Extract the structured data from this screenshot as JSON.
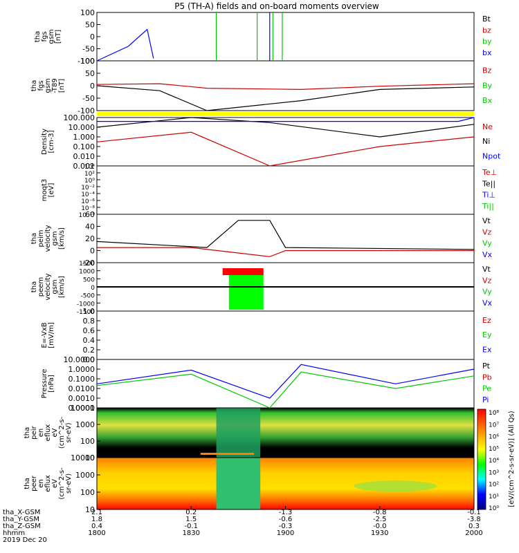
{
  "title": "P5 (TH-A) fields and on-board moments overview",
  "colors": {
    "black": "#000000",
    "red": "#cc0000",
    "green": "#00c800",
    "blue": "#0000ff",
    "yellow": "#ffff00"
  },
  "panels": [
    {
      "id": "fgs_gsm",
      "ylabel": [
        "tha",
        "fgs",
        "gsm",
        "[nT]"
      ],
      "ticks": [
        "100",
        "50",
        "0",
        "-50",
        "-100"
      ],
      "legend": [
        {
          "text": "Bt",
          "color": "black"
        },
        {
          "text": "bz",
          "color": "red"
        },
        {
          "text": "by",
          "color": "green"
        },
        {
          "text": "bx",
          "color": "blue"
        }
      ]
    },
    {
      "id": "fgs_dsl",
      "ylabel": [
        "tha",
        "fgs",
        "gsm",
        "-T89",
        "[nT]"
      ],
      "ticks": [
        "100",
        "50",
        "0",
        "-50",
        "-100"
      ],
      "legend": [
        {
          "text": "Bz",
          "color": "red"
        },
        {
          "text": "By",
          "color": "green"
        },
        {
          "text": "Bx",
          "color": "green"
        }
      ]
    },
    {
      "id": "density",
      "ylabel": [
        "Density",
        "[cm-3]"
      ],
      "ticks": [
        "100.000",
        "10.000",
        "1.000",
        "0.100",
        "0.010",
        "0.001"
      ],
      "legend": [
        {
          "text": "Ne",
          "color": "red"
        },
        {
          "text": "Ni",
          "color": "black"
        },
        {
          "text": "Npot",
          "color": "blue"
        }
      ]
    },
    {
      "id": "temp",
      "ylabel": [
        "moqt3",
        "[eV]"
      ],
      "ticks": [
        "10⁴",
        "10²",
        "10⁰",
        "10⁻²",
        "10⁻⁴",
        "10⁻⁶",
        "10⁻⁸",
        "10⁻¹⁰"
      ],
      "legend": [
        {
          "text": "Te⊥",
          "color": "red"
        },
        {
          "text": "Te||",
          "color": "black"
        },
        {
          "text": "Ti⊥",
          "color": "blue"
        },
        {
          "text": "Ti||",
          "color": "green"
        }
      ]
    },
    {
      "id": "peim_vel",
      "ylabel": [
        "tha",
        "peim",
        "velocity",
        "gsm",
        "[km/s]"
      ],
      "ticks": [
        "60",
        "40",
        "20",
        "0",
        "-20"
      ],
      "legend": [
        {
          "text": "Vt",
          "color": "black"
        },
        {
          "text": "Vz",
          "color": "red"
        },
        {
          "text": "Vy",
          "color": "green"
        },
        {
          "text": "Vx",
          "color": "blue"
        }
      ]
    },
    {
      "id": "peem_vel",
      "ylabel": [
        "tha",
        "peem",
        "velocity",
        "gsm",
        "[km/s]"
      ],
      "ticks": [
        "1500",
        "1000",
        "500",
        "0",
        "-500",
        "-1000",
        "-1500"
      ],
      "legend": [
        {
          "text": "Vt",
          "color": "black"
        },
        {
          "text": "Vz",
          "color": "red"
        },
        {
          "text": "Vy",
          "color": "green"
        },
        {
          "text": "Vx",
          "color": "blue"
        }
      ]
    },
    {
      "id": "efield",
      "ylabel": [
        "E=-VxB",
        "[mV/m]"
      ],
      "ticks": [
        "1.0",
        "0.8",
        "0.6",
        "0.4",
        "0.2",
        "0.0"
      ],
      "legend": [
        {
          "text": "Ez",
          "color": "red"
        },
        {
          "text": "Ey",
          "color": "green"
        },
        {
          "text": "Ex",
          "color": "blue"
        }
      ]
    },
    {
      "id": "pressure",
      "ylabel": [
        "Pressure",
        "[nPa]"
      ],
      "ticks": [
        "10.0000",
        "1.0000",
        "0.1000",
        "0.0100",
        "0.0010",
        "0.0001"
      ],
      "legend": [
        {
          "text": "Pt",
          "color": "black"
        },
        {
          "text": "Pb",
          "color": "red"
        },
        {
          "text": "Pe",
          "color": "green"
        },
        {
          "text": "Pi",
          "color": "blue"
        }
      ]
    },
    {
      "id": "peir_spec",
      "ylabel": [
        "tha",
        "peir",
        "en",
        "eflux",
        "eV",
        "(cm^2-s-",
        "sr-eV)"
      ],
      "ticks": [
        "10000",
        "1000",
        "100",
        "10"
      ]
    },
    {
      "id": "peer_spec",
      "ylabel": [
        "tha",
        "peer",
        "en",
        "eflux",
        "eV",
        "(cm^2-s-",
        "sr-eV)"
      ],
      "ticks": [
        "10000",
        "1000",
        "100",
        "10"
      ]
    }
  ],
  "colorbar": {
    "ticks": [
      "10⁸",
      "10⁷",
      "10⁶",
      "10⁵",
      "10⁴",
      "10³",
      "10²",
      "10¹",
      "10⁰"
    ],
    "label": "[eV/(cm^2-s-sr-eV)] (All Qs)"
  },
  "xaxis": {
    "row_labels": [
      "tha_X-GSM",
      "tha_Y-GSM",
      "tha_Z-GSM",
      "hhmm",
      "2019 Dec 20"
    ],
    "columns": [
      {
        "x": "2.1",
        "y": "1.8",
        "z": "0.4",
        "t": "1800"
      },
      {
        "x": "0.2",
        "y": "1.5",
        "z": "-0.1",
        "t": "1830"
      },
      {
        "x": "-1.3",
        "y": "-0.6",
        "z": "-0.3",
        "t": "1900"
      },
      {
        "x": "-0.8",
        "y": "-2.5",
        "z": "-0.0",
        "t": "1930"
      },
      {
        "x": "-0.1",
        "y": "-3.8",
        "z": "0.3",
        "t": "2000"
      }
    ]
  },
  "chart_data": [
    {
      "type": "line",
      "panel": "fgs_gsm",
      "ylim": [
        -100,
        100
      ],
      "series": [
        {
          "name": "bx",
          "x": [
            "1800",
            "1810",
            "1816",
            "1818"
          ],
          "values": [
            -100,
            -40,
            30,
            -90
          ]
        }
      ]
    },
    {
      "type": "line",
      "panel": "fgs_dsl",
      "ylim": [
        -100,
        100
      ],
      "series": [
        {
          "name": "Bz",
          "x": [
            "1800",
            "1820",
            "1835",
            "1905",
            "1930",
            "2000"
          ],
          "values": [
            5,
            8,
            -10,
            -15,
            -2,
            8
          ]
        },
        {
          "name": "Bx",
          "x": [
            "1800",
            "1820",
            "1835",
            "1905",
            "1930",
            "2000"
          ],
          "values": [
            0,
            -20,
            -100,
            -60,
            -15,
            -5
          ]
        }
      ]
    },
    {
      "type": "line",
      "panel": "density",
      "ylim": [
        0.001,
        100
      ],
      "series": [
        {
          "name": "Ni",
          "x": [
            "1800",
            "1830",
            "1855",
            "1930",
            "2000"
          ],
          "values": [
            10,
            100,
            30,
            1,
            20
          ]
        },
        {
          "name": "Ne",
          "x": [
            "1800",
            "1830",
            "1855",
            "1930",
            "2000"
          ],
          "values": [
            0.3,
            3,
            0.001,
            0.1,
            1
          ]
        },
        {
          "name": "Npot",
          "x": [
            "1800",
            "1845",
            "1900",
            "1955",
            "2000"
          ],
          "values": [
            40,
            40,
            40,
            40,
            100
          ]
        }
      ]
    },
    {
      "type": "line",
      "panel": "peim_vel",
      "ylim": [
        -20,
        60
      ],
      "series": [
        {
          "name": "Vt",
          "x": [
            "1800",
            "1835",
            "1845",
            "1855",
            "1900",
            "2000"
          ],
          "values": [
            15,
            5,
            50,
            50,
            5,
            2
          ]
        },
        {
          "name": "Vz",
          "x": [
            "1800",
            "1830",
            "1855",
            "1900",
            "2000"
          ],
          "values": [
            5,
            5,
            -10,
            0,
            0
          ]
        }
      ]
    },
    {
      "type": "line",
      "panel": "pressure",
      "ylim": [
        0.0001,
        10
      ],
      "series": [
        {
          "name": "Pi",
          "x": [
            "1800",
            "1830",
            "1855",
            "1905",
            "1935",
            "2000"
          ],
          "values": [
            0.03,
            0.8,
            0.001,
            3,
            0.03,
            1
          ]
        },
        {
          "name": "Pe",
          "x": [
            "1800",
            "1830",
            "1855",
            "1905",
            "1935",
            "2000"
          ],
          "values": [
            0.02,
            0.3,
            0.0001,
            0.5,
            0.01,
            0.2
          ]
        }
      ]
    }
  ]
}
